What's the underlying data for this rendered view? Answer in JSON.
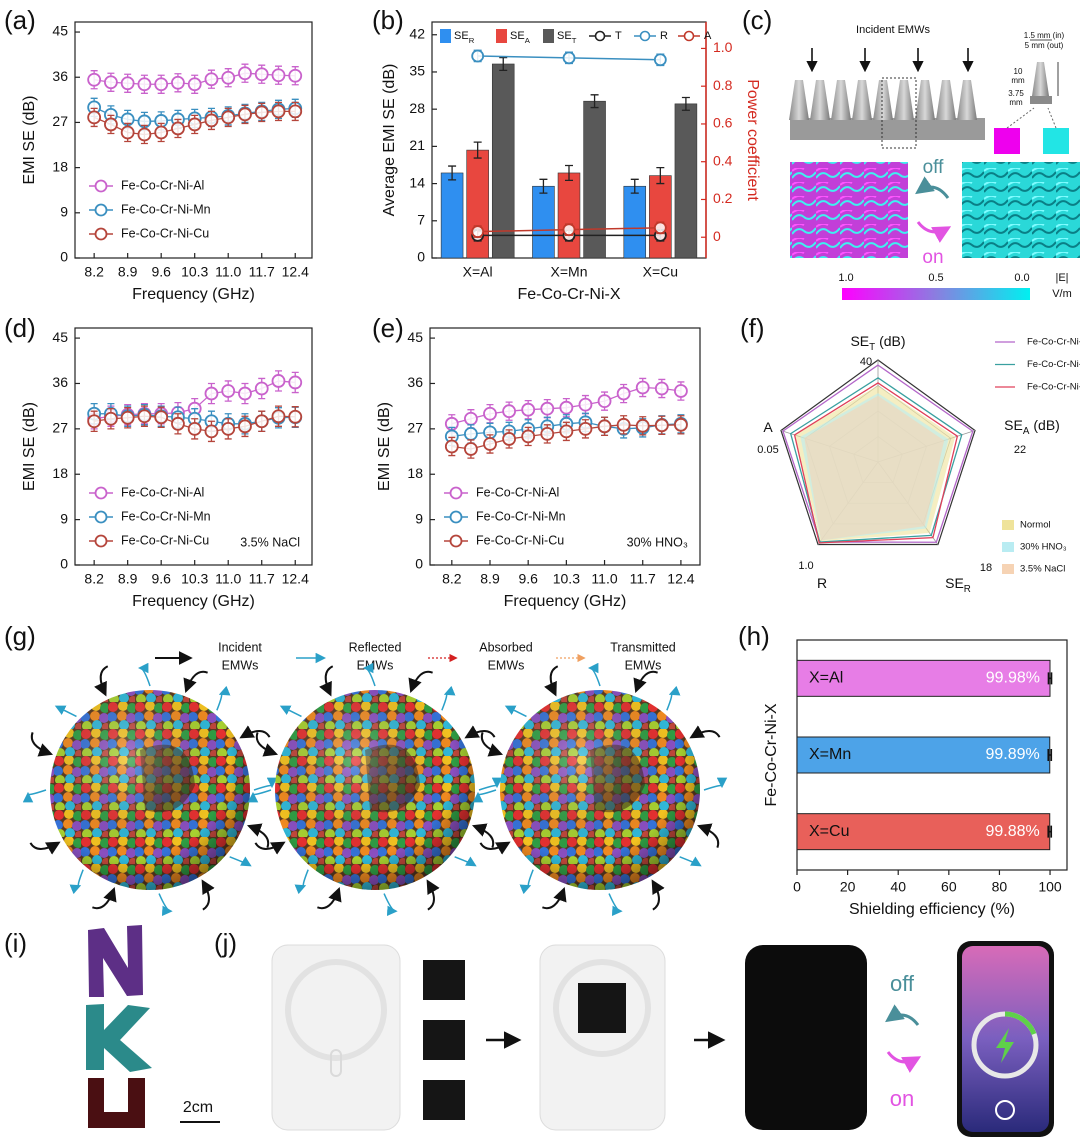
{
  "chart_data": [
    {
      "type": "line",
      "label": "(a)",
      "xlabel": "Frequency (GHz)",
      "ylabel": "EMI SE (dB)",
      "x": [
        8.2,
        8.55,
        8.9,
        9.25,
        9.6,
        9.95,
        10.3,
        10.65,
        11.0,
        11.35,
        11.7,
        12.05,
        12.4
      ],
      "xlim": [
        7.8,
        12.75
      ],
      "xticks": [
        8.2,
        8.9,
        9.6,
        10.3,
        {
          "value": 11.0,
          "label": "11.0"
        },
        11.7,
        12.4
      ],
      "ylim": [
        0,
        47
      ],
      "yticks": [
        0,
        9,
        18,
        27,
        36,
        45
      ],
      "series": [
        {
          "name": "Fe-Co-Cr-Ni-Al",
          "color": "#c962cc",
          "values": [
            35.5,
            35.0,
            34.8,
            34.6,
            34.6,
            34.9,
            34.6,
            35.6,
            35.9,
            36.8,
            36.6,
            36.4,
            36.3
          ],
          "errors": [
            1.8,
            1.8,
            1.8,
            1.8,
            1.8,
            1.8,
            1.8,
            1.8,
            1.8,
            1.8,
            1.8,
            1.8,
            1.8
          ]
        },
        {
          "name": "Fe-Co-Cr-Ni-Mn",
          "color": "#3a8fc0",
          "values": [
            30.0,
            28.5,
            27.6,
            27.2,
            27.3,
            27.6,
            27.8,
            28.0,
            28.3,
            28.8,
            29.2,
            29.6,
            29.8
          ],
          "errors": [
            1.8,
            1.8,
            1.8,
            1.8,
            1.8,
            1.8,
            1.8,
            1.8,
            1.8,
            1.8,
            1.8,
            1.8,
            1.8
          ]
        },
        {
          "name": "Fe-Co-Cr-Ni-Cu",
          "color": "#b5453b",
          "values": [
            28.0,
            26.6,
            25.0,
            24.6,
            25.0,
            25.8,
            26.6,
            27.4,
            28.0,
            28.6,
            29.0,
            29.2,
            29.2
          ],
          "errors": [
            1.8,
            1.8,
            1.8,
            1.8,
            1.8,
            1.8,
            1.8,
            1.8,
            1.8,
            1.8,
            1.8,
            1.8,
            1.8
          ]
        }
      ]
    },
    {
      "type": "bar",
      "label": "(b)",
      "categories": [
        "X=Al",
        "X=Mn",
        "X=Cu"
      ],
      "xlabel": "Fe-Co-Cr-Ni-X",
      "ylabel": "Average EMI SE (dB)",
      "y2label": "Power coefficient",
      "y2color": "#d42a20",
      "ylim": [
        0,
        44.4
      ],
      "yticks": [
        0,
        7,
        14,
        21,
        28,
        35,
        42
      ],
      "y2lim": [
        -0.11,
        1.14
      ],
      "y2ticks": [
        0,
        0.2,
        0.4,
        0.6,
        0.8,
        {
          "value": 1.0,
          "label": "1.0"
        }
      ],
      "series": [
        {
          "name": "SE",
          "subscript": "R",
          "color": "#2f8ff0",
          "values": [
            16,
            13.5,
            13.5
          ],
          "errors": [
            1.3,
            1.3,
            1.3
          ]
        },
        {
          "name": "SE",
          "subscript": "A",
          "color": "#e8473f",
          "values": [
            20.3,
            16,
            15.5
          ],
          "errors": [
            1.5,
            1.4,
            1.5
          ]
        },
        {
          "name": "SE",
          "subscript": "T",
          "color": "#595959",
          "values": [
            36.5,
            29.5,
            29
          ],
          "errors": [
            1.2,
            1.2,
            1.2
          ]
        },
        {
          "name": "T",
          "type": "line",
          "axis": "y2",
          "color": "#222222",
          "values": [
            0.01,
            0.01,
            0.01
          ],
          "errors": [
            0.03,
            0.03,
            0.03
          ]
        },
        {
          "name": "R",
          "type": "line",
          "axis": "y2",
          "color": "#3a8fc0",
          "values": [
            0.96,
            0.95,
            0.94
          ],
          "errors": [
            0.03,
            0.03,
            0.03
          ]
        },
        {
          "name": "A",
          "type": "line",
          "axis": "y2",
          "color": "#c0392b",
          "values": [
            0.03,
            0.04,
            0.05
          ],
          "errors": [
            0.03,
            0.03,
            0.03
          ]
        }
      ]
    },
    {
      "type": "line",
      "label": "(d)",
      "xlabel": "Frequency (GHz)",
      "ylabel": "EMI SE (dB)",
      "note": "3.5% NaCl",
      "x": [
        8.2,
        8.55,
        8.9,
        9.25,
        9.6,
        9.95,
        10.3,
        10.65,
        11.0,
        11.35,
        11.7,
        12.05,
        12.4
      ],
      "xlim": [
        7.8,
        12.75
      ],
      "xticks": [
        8.2,
        8.9,
        9.6,
        10.3,
        {
          "value": 11.0,
          "label": "11.0"
        },
        11.7,
        12.4
      ],
      "ylim": [
        0,
        47
      ],
      "yticks": [
        0,
        9,
        18,
        27,
        36,
        45
      ],
      "series": [
        {
          "name": "Fe-Co-Cr-Ni-Al",
          "color": "#c962cc",
          "values": [
            29.0,
            29.5,
            29.8,
            30.0,
            30.0,
            30.2,
            31.0,
            34.0,
            34.5,
            34.0,
            35.0,
            36.5,
            36.2
          ],
          "errors": [
            2,
            2,
            2,
            2,
            2,
            2,
            2,
            2,
            2,
            2,
            2,
            2,
            2
          ]
        },
        {
          "name": "Fe-Co-Cr-Ni-Mn",
          "color": "#3a8fc0",
          "values": [
            30.0,
            30.0,
            29.5,
            29.8,
            29.5,
            29.3,
            29.0,
            28.5,
            28.0,
            28.0,
            28.5,
            29.2,
            29.3
          ],
          "errors": [
            2,
            2,
            2,
            2,
            2,
            2,
            2,
            2,
            2,
            2,
            2,
            2,
            2
          ]
        },
        {
          "name": "Fe-Co-Cr-Ni-Cu",
          "color": "#b5453b",
          "values": [
            28.5,
            29.0,
            29.2,
            29.5,
            29.3,
            28.0,
            27.0,
            26.5,
            27.0,
            27.5,
            28.5,
            29.5,
            29.4
          ],
          "errors": [
            2,
            2,
            2,
            2,
            2,
            2,
            2,
            2,
            2,
            2,
            2,
            2,
            2
          ]
        }
      ]
    },
    {
      "type": "line",
      "label": "(e)",
      "xlabel": "Frequency (GHz)",
      "ylabel": "EMI SE (dB)",
      "note": "30% HNO₃",
      "x": [
        8.2,
        8.55,
        8.9,
        9.25,
        9.6,
        9.95,
        10.3,
        10.65,
        11.0,
        11.35,
        11.7,
        12.05,
        12.4
      ],
      "xlim": [
        7.8,
        12.75
      ],
      "xticks": [
        8.2,
        8.9,
        9.6,
        10.3,
        {
          "value": 11.0,
          "label": "11.0"
        },
        11.7,
        12.4
      ],
      "ylim": [
        0,
        47
      ],
      "yticks": [
        0,
        9,
        18,
        27,
        36,
        45
      ],
      "series": [
        {
          "name": "Fe-Co-Cr-Ni-Al",
          "color": "#c962cc",
          "values": [
            28.0,
            29.0,
            30.0,
            30.5,
            30.8,
            31.0,
            31.2,
            31.8,
            32.5,
            34.0,
            35.2,
            35.0,
            34.5
          ],
          "errors": [
            1.8,
            1.8,
            1.8,
            1.8,
            1.8,
            1.8,
            1.8,
            1.8,
            1.8,
            1.8,
            1.8,
            1.8,
            1.8
          ]
        },
        {
          "name": "Fe-Co-Cr-Ni-Mn",
          "color": "#3a8fc0",
          "values": [
            25.5,
            26.0,
            26.3,
            26.5,
            27.0,
            27.5,
            28.0,
            28.3,
            27.5,
            27.0,
            27.2,
            27.8,
            28.0
          ],
          "errors": [
            1.8,
            1.8,
            1.8,
            1.8,
            1.8,
            1.8,
            1.8,
            1.8,
            1.8,
            1.8,
            1.8,
            1.8,
            1.8
          ]
        },
        {
          "name": "Fe-Co-Cr-Ni-Cu",
          "color": "#b5453b",
          "values": [
            23.5,
            23.0,
            24.0,
            25.0,
            25.5,
            26.0,
            26.5,
            27.0,
            27.5,
            27.8,
            27.6,
            27.7,
            27.8
          ],
          "errors": [
            1.8,
            1.8,
            1.8,
            1.8,
            1.8,
            1.8,
            1.8,
            1.8,
            1.8,
            1.8,
            1.8,
            1.8,
            1.8
          ]
        }
      ]
    },
    {
      "type": "radar",
      "label": "(f)",
      "axes": [
        {
          "name": "SE",
          "subscript": "T",
          "unit": "(dB)",
          "max": 40
        },
        {
          "name": "SE",
          "subscript": "A",
          "unit": "(dB)",
          "max": 22
        },
        {
          "name": "SE",
          "subscript": "R",
          "max": 18
        },
        {
          "name": "R",
          "max": {
            "value": 1.0,
            "label": "1.0"
          }
        },
        {
          "name": "A",
          "max": 0.05
        }
      ],
      "series": [
        {
          "name": "Normol",
          "style": "area",
          "color": "#efe39a",
          "values": [
            30,
            17.5,
            15.5,
            0.96,
            0.043
          ]
        },
        {
          "name": "30% HNO₃",
          "style": "area",
          "color": "#b9ecf2",
          "values": [
            27,
            16,
            14.5,
            0.95,
            0.04
          ]
        },
        {
          "name": "3.5% NaCl",
          "style": "area",
          "color": "#f6d3b4",
          "values": [
            26,
            15,
            14,
            0.95,
            0.038
          ]
        },
        {
          "name": "Fe-Co-Cr-Ni-Al",
          "style": "line",
          "color": "#b366c9",
          "values": [
            38,
            21.5,
            17.5,
            0.97,
            0.049
          ]
        },
        {
          "name": "Fe-Co-Cr-Ni-Mn",
          "style": "line",
          "color": "#3aa0a0",
          "values": [
            33,
            19,
            16,
            0.97,
            0.045
          ]
        },
        {
          "name": "Fe-Co-Cr-Ni-Cu",
          "style": "line",
          "color": "#e0405a",
          "values": [
            31,
            18,
            16.5,
            0.98,
            0.043
          ]
        }
      ]
    },
    {
      "type": "bar",
      "orientation": "horizontal",
      "label": "(h)",
      "categories": [
        "X=Al",
        "X=Mn",
        "X=Cu"
      ],
      "values": [
        99.98,
        99.89,
        99.88
      ],
      "value_labels": [
        "99.98%",
        "99.89%",
        "99.88%"
      ],
      "errors": [
        0.6,
        0.6,
        0.6
      ],
      "colors": [
        "#e77de6",
        "#4da3e8",
        "#e8605a"
      ],
      "xlim": [
        0,
        106.7
      ],
      "xticks": [
        0,
        20,
        40,
        60,
        80,
        100
      ],
      "xlabel": "Shielding efficiency (%)",
      "ylabel": "Fe-Co-Cr-Ni-X"
    }
  ],
  "panel_c": {
    "label": "(c)",
    "title": "Incident EMWs",
    "dim_top": [
      "1.5 mm (in)",
      "5 mm (out)"
    ],
    "dim_height": [
      "10",
      "mm"
    ],
    "dim_base": [
      "3.75",
      "mm"
    ],
    "switch": [
      "off",
      "on"
    ],
    "colorbar": [
      "1.0",
      "0.5",
      "0.0"
    ],
    "unit": [
      "|E|",
      "V/m"
    ]
  },
  "panel_g": {
    "label": "(g)",
    "legend": [
      [
        "Incident",
        "EMWs"
      ],
      [
        "Reflected",
        "EMWs"
      ],
      [
        "Absorbed",
        "EMWs"
      ],
      [
        "Transmitted",
        "EMWs"
      ]
    ]
  },
  "panel_i": {
    "label": "(i)",
    "scale": "2cm"
  },
  "panel_j": {
    "label": "(j)",
    "switch": [
      "off",
      "on"
    ]
  }
}
